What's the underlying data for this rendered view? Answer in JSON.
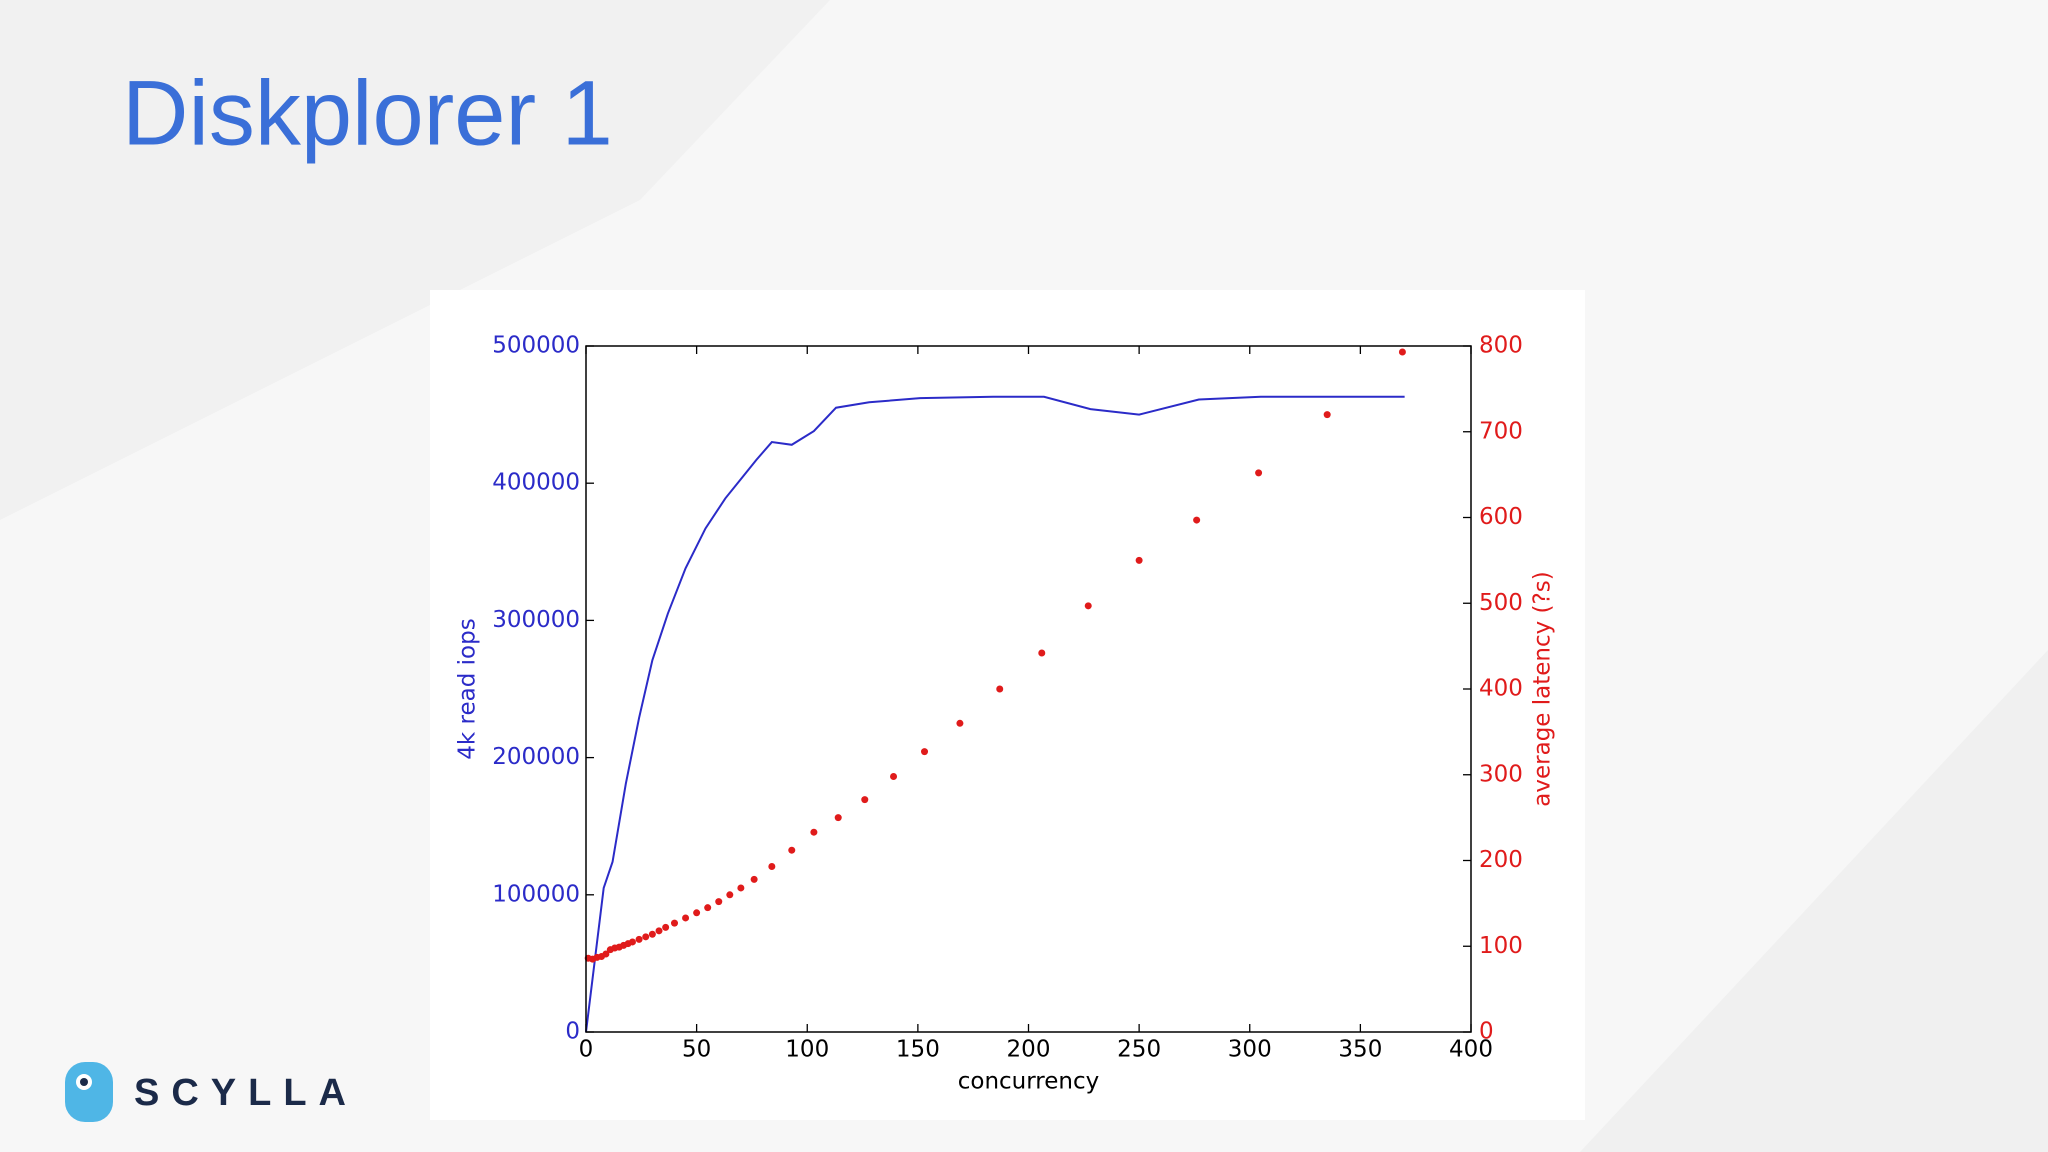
{
  "title": "Diskplorer 1",
  "logo": {
    "text": "SCYLLA"
  },
  "chart_data": {
    "type": "line",
    "x_label": "concurrency",
    "y_label": "4k read iops",
    "y2_label": "average latency (?s)",
    "xlim": [
      0,
      400
    ],
    "xticks": [
      0,
      50,
      100,
      150,
      200,
      250,
      300,
      350,
      400
    ],
    "ylim": [
      0,
      500000
    ],
    "yticks": [
      0,
      100000,
      200000,
      300000,
      400000,
      500000
    ],
    "y2lim": [
      0,
      800
    ],
    "y2ticks": [
      0,
      100,
      200,
      300,
      400,
      500,
      600,
      700,
      800
    ],
    "grid": false,
    "series": [
      {
        "color": "#2b2bc8",
        "style": "line",
        "x": [
          0,
          8,
          12,
          18,
          24,
          30,
          37,
          45,
          54,
          63,
          71,
          77,
          84,
          93,
          103,
          113,
          128,
          151,
          184,
          207,
          228,
          250,
          277,
          305,
          337,
          370
        ],
        "values": [
          0,
          105000,
          124000,
          181000,
          229000,
          271000,
          305000,
          338000,
          367000,
          389000,
          405000,
          417000,
          430000,
          428000,
          438000,
          455000,
          459000,
          462000,
          463000,
          463000,
          454000,
          450000,
          461000,
          463000,
          463000,
          463000
        ]
      },
      {
        "color": "#e01b1b",
        "style": "markers",
        "axis": "y2",
        "x": [
          1,
          3,
          5,
          7,
          9,
          11,
          13,
          15,
          17,
          19,
          21,
          24,
          27,
          30,
          33,
          36,
          40,
          45,
          50,
          55,
          60,
          65,
          70,
          76,
          84,
          93,
          103,
          114,
          126,
          139,
          153,
          169,
          187,
          206,
          227,
          250,
          276,
          304,
          335,
          369
        ],
        "values": [
          86,
          85,
          87,
          88,
          91,
          96,
          98,
          99,
          101,
          103,
          105,
          108,
          111,
          114,
          118,
          122,
          127,
          133,
          139,
          145,
          152,
          160,
          168,
          178,
          193,
          212,
          233,
          250,
          271,
          298,
          327,
          360,
          400,
          442,
          497,
          550,
          597,
          652,
          720,
          793
        ]
      }
    ]
  }
}
